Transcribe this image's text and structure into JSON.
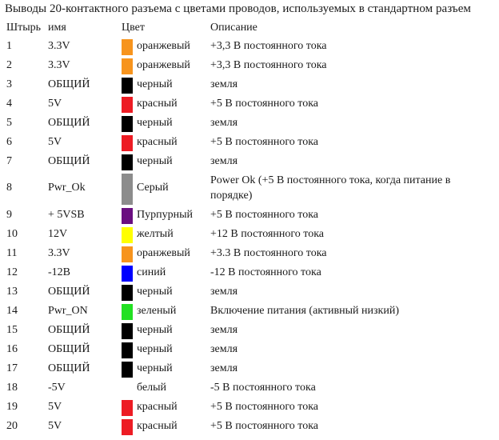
{
  "title": "Выводы 20-контактного разъема с цветами проводов, используемых в стандартном разъем",
  "headers": {
    "pin": "Штырь",
    "name": "имя",
    "color": "Цвет",
    "description": "Описание"
  },
  "rows": [
    {
      "pin": "1",
      "name": "3.3V",
      "color": "оранжевый",
      "swatch": "#f7941d",
      "description": "+3,3 В постоянного тока"
    },
    {
      "pin": "2",
      "name": "3.3V",
      "color": "оранжевый",
      "swatch": "#f7941d",
      "description": "+3,3 В постоянного тока"
    },
    {
      "pin": "3",
      "name": "ОБЩИЙ",
      "color": "черный",
      "swatch": "#000000",
      "description": "земля"
    },
    {
      "pin": "4",
      "name": "5V",
      "color": "красный",
      "swatch": "#ed1c24",
      "description": "+5 В постоянного тока"
    },
    {
      "pin": "5",
      "name": "ОБЩИЙ",
      "color": "черный",
      "swatch": "#000000",
      "description": "земля"
    },
    {
      "pin": "6",
      "name": "5V",
      "color": "красный",
      "swatch": "#ed1c24",
      "description": "+5 В постоянного тока"
    },
    {
      "pin": "7",
      "name": "ОБЩИЙ",
      "color": "черный",
      "swatch": "#000000",
      "description": "земля"
    },
    {
      "pin": "8",
      "name": "Pwr_Ok",
      "color": "Серый",
      "swatch": "#8c8c8c",
      "description": "Power Ok (+5 В постоянного тока, когда питание в порядке)"
    },
    {
      "pin": "9",
      "name": "+ 5VSB",
      "color": "Пурпурный",
      "swatch": "#6a0f80",
      "description": "+5 В постоянного тока"
    },
    {
      "pin": "10",
      "name": "12V",
      "color": "желтый",
      "swatch": "#ffff00",
      "description": "+12 В постоянного тока"
    },
    {
      "pin": "11",
      "name": "3.3V",
      "color": "оранжевый",
      "swatch": "#f7941d",
      "description": "+3.3 В постоянного тока"
    },
    {
      "pin": "12",
      "name": "-12В",
      "color": "синий",
      "swatch": "#0000ff",
      "description": "-12 В постоянного тока"
    },
    {
      "pin": "13",
      "name": "ОБЩИЙ",
      "color": "черный",
      "swatch": "#000000",
      "description": "земля"
    },
    {
      "pin": "14",
      "name": "Pwr_ON",
      "color": "зеленый",
      "swatch": "#22e022",
      "description": "Включение питания (активный низкий)"
    },
    {
      "pin": "15",
      "name": "ОБЩИЙ",
      "color": "черный",
      "swatch": "#000000",
      "description": "земля"
    },
    {
      "pin": "16",
      "name": "ОБЩИЙ",
      "color": "черный",
      "swatch": "#000000",
      "description": "земля"
    },
    {
      "pin": "17",
      "name": "ОБЩИЙ",
      "color": "черный",
      "swatch": "#000000",
      "description": "земля"
    },
    {
      "pin": "18",
      "name": "-5V",
      "color": "белый",
      "swatch": "#ffffff",
      "description": "-5 В постоянного тока"
    },
    {
      "pin": "19",
      "name": "5V",
      "color": "красный",
      "swatch": "#ed1c24",
      "description": "+5 В постоянного тока"
    },
    {
      "pin": "20",
      "name": "5V",
      "color": "красный",
      "swatch": "#ed1c24",
      "description": "+5 В постоянного тока"
    }
  ]
}
